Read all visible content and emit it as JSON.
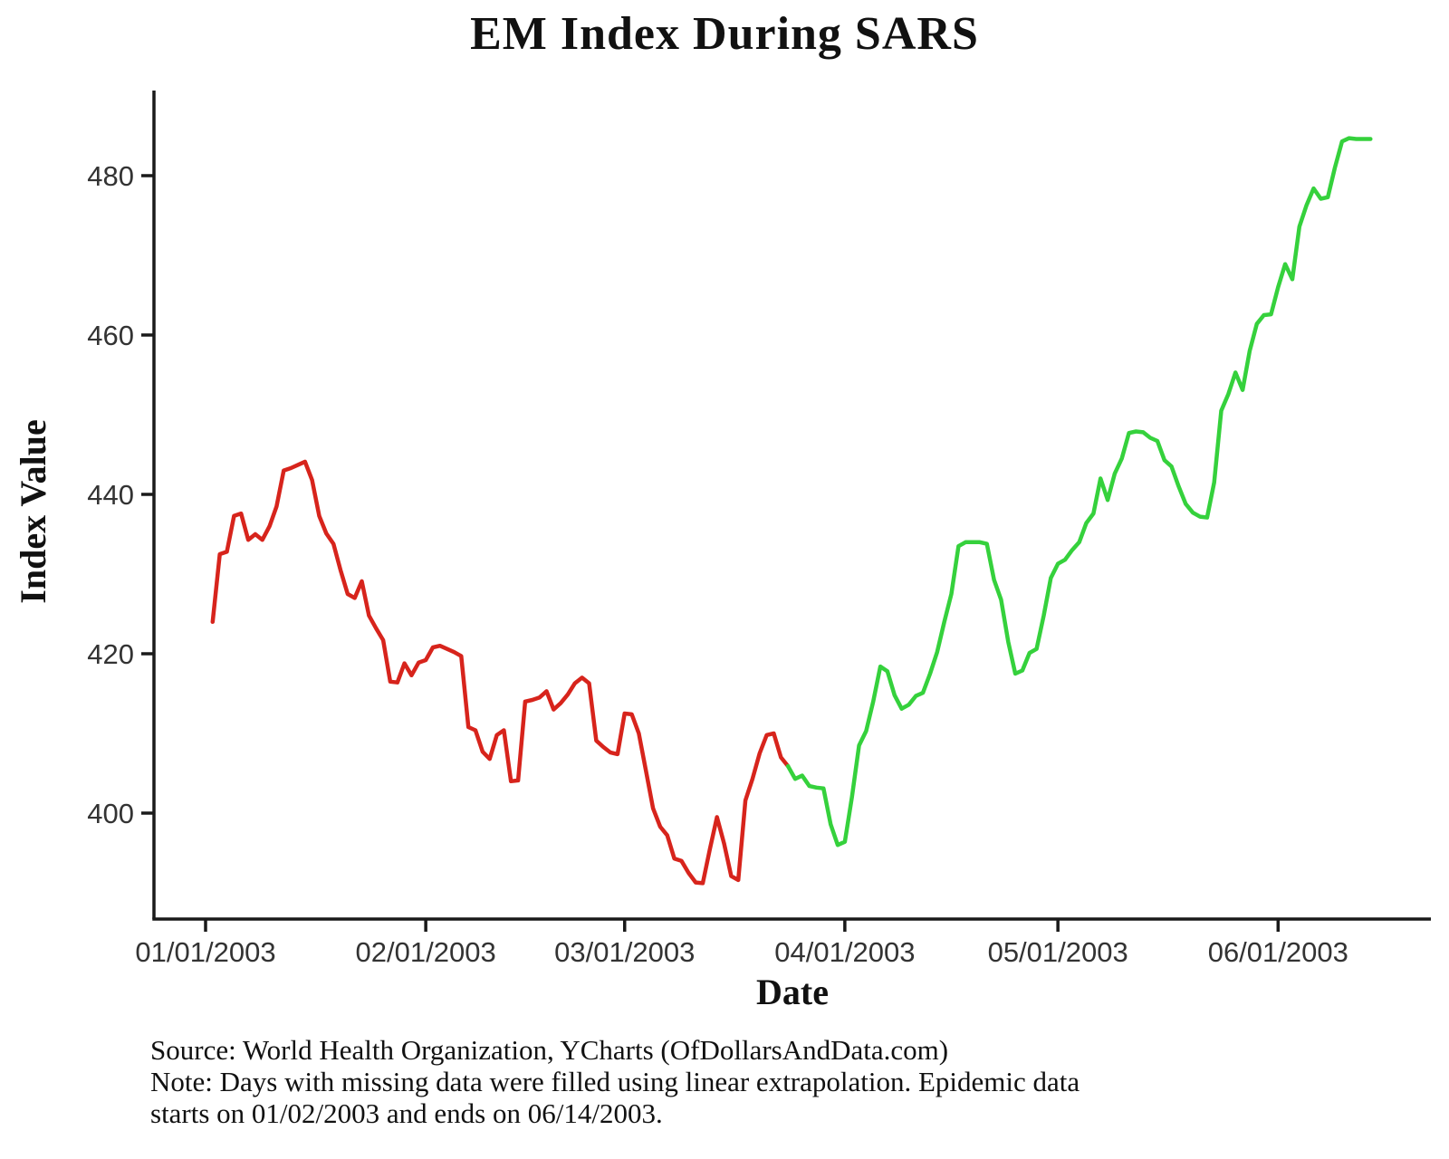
{
  "title": "EM Index During SARS",
  "axes": {
    "y_label": "Index Value",
    "x_label": "Date",
    "y_ticks": [
      400,
      420,
      440,
      460,
      480
    ],
    "x_ticks": [
      "01/01/2003",
      "02/01/2003",
      "03/01/2003",
      "04/01/2003",
      "05/01/2003",
      "06/01/2003"
    ]
  },
  "footer": {
    "source": "Source: World Health Organization, YCharts (OfDollarsAndData.com)",
    "note_line1": "Note: Days with missing data were filled using linear extrapolation. Epidemic data",
    "note_line2": "starts on 01/02/2003 and ends on 06/14/2003."
  },
  "colors": {
    "decline_segment": "#d7241c",
    "recovery_segment": "#35d13c",
    "axis": "#1a1a1a",
    "tick_text": "#333333"
  },
  "chart_data": {
    "type": "line",
    "title": "EM Index During SARS",
    "xlabel": "Date",
    "ylabel": "Index Value",
    "year": "2003",
    "x_range": [
      "01/01/2003",
      "06/22/2003"
    ],
    "ylim": [
      386.5,
      490
    ],
    "grid": false,
    "legend": false,
    "series": [
      {
        "name": "EM Index (decline phase, red)",
        "color": "#d7241c",
        "points": [
          [
            "01/02",
            424.0
          ],
          [
            "01/03",
            432.5
          ],
          [
            "01/04",
            432.8
          ],
          [
            "01/05",
            437.3
          ],
          [
            "01/06",
            437.6
          ],
          [
            "01/07",
            434.3
          ],
          [
            "01/08",
            435.0
          ],
          [
            "01/09",
            434.3
          ],
          [
            "01/10",
            436.0
          ],
          [
            "01/11",
            438.5
          ],
          [
            "01/12",
            443.0
          ],
          [
            "01/13",
            443.3
          ],
          [
            "01/14",
            443.7
          ],
          [
            "01/15",
            444.1
          ],
          [
            "01/16",
            441.8
          ],
          [
            "01/17",
            437.3
          ],
          [
            "01/18",
            435.1
          ],
          [
            "01/19",
            433.8
          ],
          [
            "01/20",
            430.5
          ],
          [
            "01/21",
            427.5
          ],
          [
            "01/22",
            427.0
          ],
          [
            "01/23",
            429.1
          ],
          [
            "01/24",
            424.8
          ],
          [
            "01/25",
            423.2
          ],
          [
            "01/26",
            421.7
          ],
          [
            "01/27",
            416.5
          ],
          [
            "01/28",
            416.4
          ],
          [
            "01/29",
            418.8
          ],
          [
            "01/30",
            417.3
          ],
          [
            "01/31",
            418.9
          ],
          [
            "02/01",
            419.2
          ],
          [
            "02/02",
            420.8
          ],
          [
            "02/03",
            421.0
          ],
          [
            "02/04",
            420.6
          ],
          [
            "02/05",
            420.2
          ],
          [
            "02/06",
            419.7
          ],
          [
            "02/07",
            410.8
          ],
          [
            "02/08",
            410.4
          ],
          [
            "02/09",
            407.7
          ],
          [
            "02/10",
            406.8
          ],
          [
            "02/11",
            409.8
          ],
          [
            "02/12",
            410.4
          ],
          [
            "02/13",
            404.0
          ],
          [
            "02/14",
            404.1
          ],
          [
            "02/15",
            414.0
          ],
          [
            "02/16",
            414.2
          ],
          [
            "02/17",
            414.5
          ],
          [
            "02/18",
            415.3
          ],
          [
            "02/19",
            413.0
          ],
          [
            "02/20",
            413.8
          ],
          [
            "02/21",
            414.9
          ],
          [
            "02/22",
            416.3
          ],
          [
            "02/23",
            417.0
          ],
          [
            "02/24",
            416.3
          ],
          [
            "02/25",
            409.1
          ],
          [
            "02/26",
            408.3
          ],
          [
            "02/27",
            407.6
          ],
          [
            "02/28",
            407.4
          ],
          [
            "03/01",
            412.5
          ],
          [
            "03/02",
            412.4
          ],
          [
            "03/03",
            410.0
          ],
          [
            "03/04",
            405.3
          ],
          [
            "03/05",
            400.6
          ],
          [
            "03/06",
            398.3
          ],
          [
            "03/07",
            397.2
          ],
          [
            "03/08",
            394.3
          ],
          [
            "03/09",
            394.0
          ],
          [
            "03/10",
            392.5
          ],
          [
            "03/11",
            391.3
          ],
          [
            "03/12",
            391.2
          ],
          [
            "03/13",
            395.5
          ],
          [
            "03/14",
            399.5
          ],
          [
            "03/15",
            396.2
          ],
          [
            "03/16",
            392.1
          ],
          [
            "03/17",
            391.6
          ],
          [
            "03/18",
            401.6
          ],
          [
            "03/19",
            404.3
          ],
          [
            "03/20",
            407.5
          ],
          [
            "03/21",
            409.8
          ],
          [
            "03/22",
            410.0
          ],
          [
            "03/23",
            407.0
          ],
          [
            "03/24",
            405.9
          ]
        ]
      },
      {
        "name": "EM Index (recovery phase, green)",
        "color": "#35d13c",
        "points": [
          [
            "03/24",
            405.9
          ],
          [
            "03/25",
            404.3
          ],
          [
            "03/26",
            404.7
          ],
          [
            "03/27",
            403.4
          ],
          [
            "03/28",
            403.2
          ],
          [
            "03/29",
            403.1
          ],
          [
            "03/30",
            398.6
          ],
          [
            "03/31",
            396.0
          ],
          [
            "04/01",
            396.4
          ],
          [
            "04/02",
            402.0
          ],
          [
            "04/03",
            408.5
          ],
          [
            "04/04",
            410.3
          ],
          [
            "04/05",
            414.0
          ],
          [
            "04/06",
            418.4
          ],
          [
            "04/07",
            417.8
          ],
          [
            "04/08",
            414.8
          ],
          [
            "04/09",
            413.1
          ],
          [
            "04/10",
            413.6
          ],
          [
            "04/11",
            414.7
          ],
          [
            "04/12",
            415.1
          ],
          [
            "04/13",
            417.5
          ],
          [
            "04/14",
            420.2
          ],
          [
            "04/15",
            424.0
          ],
          [
            "04/16",
            427.5
          ],
          [
            "04/17",
            433.5
          ],
          [
            "04/18",
            434.0
          ],
          [
            "04/19",
            434.0
          ],
          [
            "04/20",
            434.0
          ],
          [
            "04/21",
            433.8
          ],
          [
            "04/22",
            429.3
          ],
          [
            "04/23",
            426.8
          ],
          [
            "04/24",
            421.5
          ],
          [
            "04/25",
            417.5
          ],
          [
            "04/26",
            417.9
          ],
          [
            "04/27",
            420.1
          ],
          [
            "04/28",
            420.6
          ],
          [
            "04/29",
            424.8
          ],
          [
            "04/30",
            429.5
          ],
          [
            "05/01",
            431.3
          ],
          [
            "05/02",
            431.8
          ],
          [
            "05/03",
            433.0
          ],
          [
            "05/04",
            434.0
          ],
          [
            "05/05",
            436.4
          ],
          [
            "05/06",
            437.6
          ],
          [
            "05/07",
            442.0
          ],
          [
            "05/08",
            439.3
          ],
          [
            "05/09",
            442.6
          ],
          [
            "05/10",
            444.5
          ],
          [
            "05/11",
            447.7
          ],
          [
            "05/12",
            447.9
          ],
          [
            "05/13",
            447.8
          ],
          [
            "05/14",
            447.1
          ],
          [
            "05/15",
            446.7
          ],
          [
            "05/16",
            444.3
          ],
          [
            "05/17",
            443.5
          ],
          [
            "05/18",
            441.0
          ],
          [
            "05/19",
            438.8
          ],
          [
            "05/20",
            437.7
          ],
          [
            "05/21",
            437.2
          ],
          [
            "05/22",
            437.1
          ],
          [
            "05/23",
            441.5
          ],
          [
            "05/24",
            450.5
          ],
          [
            "05/25",
            452.6
          ],
          [
            "05/26",
            455.3
          ],
          [
            "05/27",
            453.1
          ],
          [
            "05/28",
            458.0
          ],
          [
            "05/29",
            461.4
          ],
          [
            "05/30",
            462.5
          ],
          [
            "05/31",
            462.6
          ],
          [
            "06/01",
            466.0
          ],
          [
            "06/02",
            468.9
          ],
          [
            "06/03",
            467.0
          ],
          [
            "06/04",
            473.6
          ],
          [
            "06/05",
            476.3
          ],
          [
            "06/06",
            478.4
          ],
          [
            "06/07",
            477.1
          ],
          [
            "06/08",
            477.3
          ],
          [
            "06/09",
            481.0
          ],
          [
            "06/10",
            484.3
          ],
          [
            "06/11",
            484.7
          ],
          [
            "06/12",
            484.6
          ],
          [
            "06/13",
            484.6
          ],
          [
            "06/14",
            484.6
          ]
        ]
      }
    ]
  }
}
